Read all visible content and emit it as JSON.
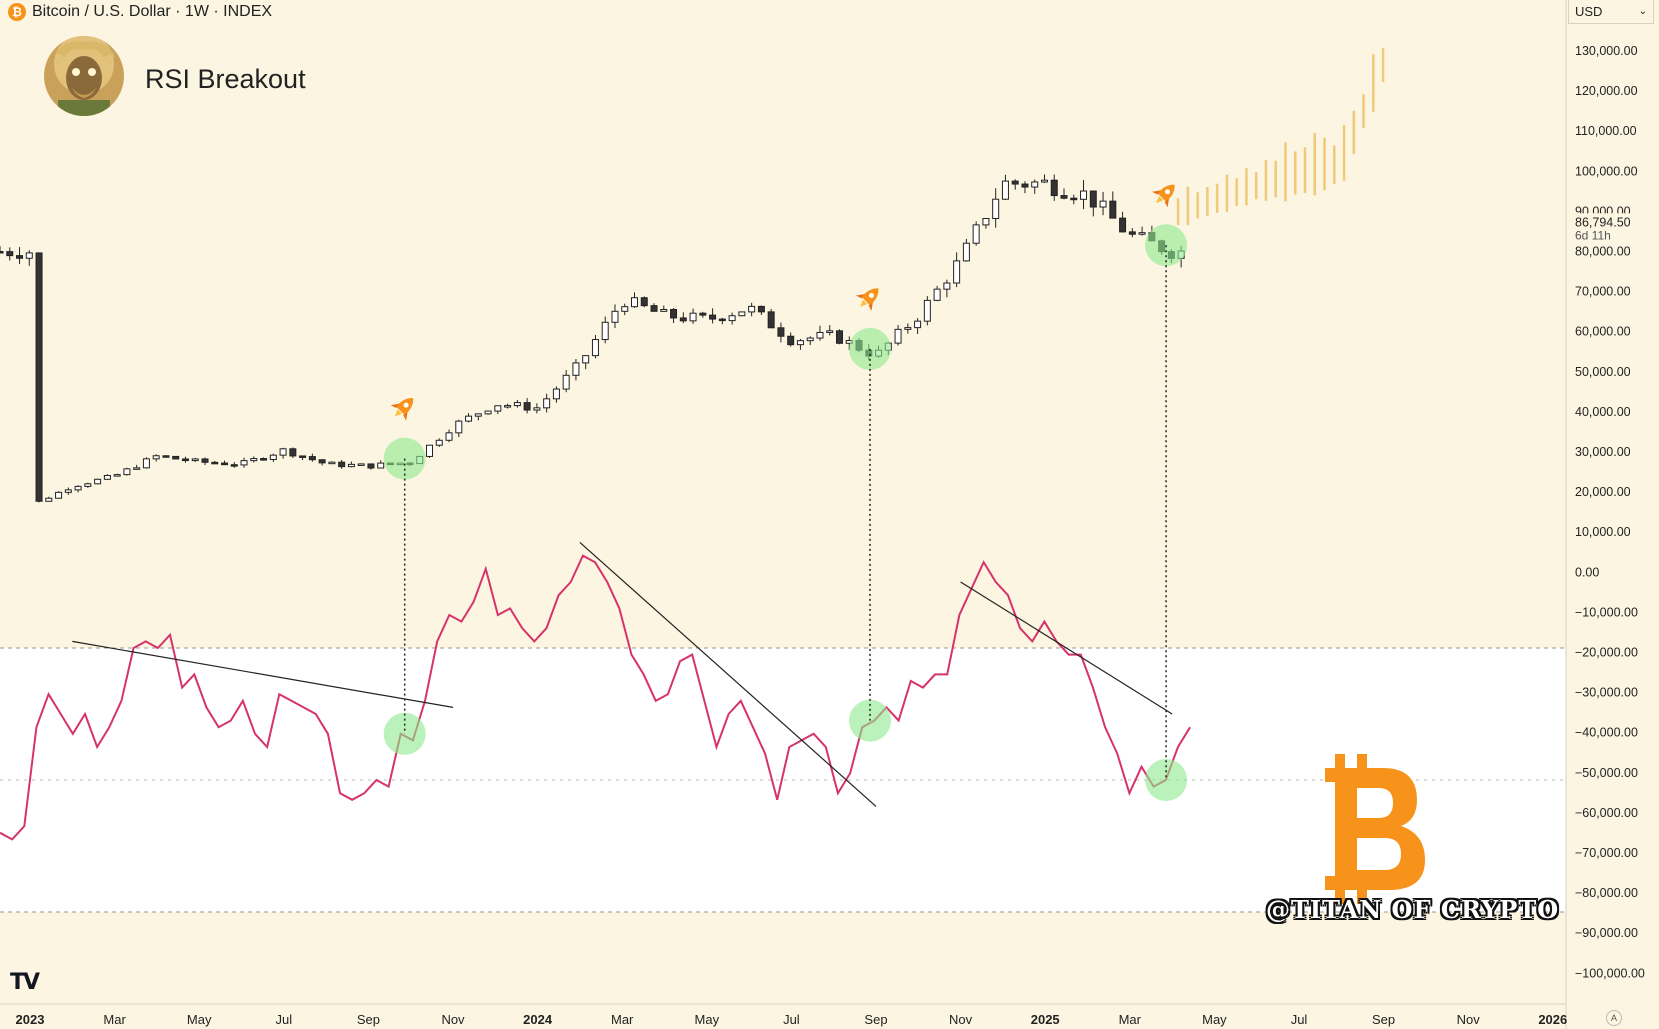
{
  "header": {
    "symbol_icon": "bitcoin-icon",
    "title": "Bitcoin / U.S. Dollar · 1W · INDEX"
  },
  "currency_selector": {
    "value": "USD",
    "icon": "chevron-down-icon"
  },
  "idea": {
    "title": "RSI Breakout",
    "avatar": "author-avatar"
  },
  "watermark": "@TITAN OF CRYPTO",
  "logo": "TV",
  "price_label": {
    "price": "86,794.50",
    "countdown": "6d 11h"
  },
  "colors": {
    "background": "#fcf5e1",
    "rsi_band": "#ffffff",
    "rsi_line": "#d6336c",
    "candle_up_fill": "#ffffff",
    "candle_down_fill": "#333333",
    "projection": "#f1c97a",
    "highlight": "#8ee98e",
    "bitcoin_orange": "#f7931a"
  },
  "chart_data": {
    "type": "candlestick",
    "title": "Bitcoin / U.S. Dollar · 1W · INDEX",
    "annotation": "RSI Breakout",
    "y_axis": {
      "ticks": [
        "130,000.00",
        "120,000.00",
        "110,000.00",
        "100,000.00",
        "90,000.00",
        "80,000.00",
        "70,000.00",
        "60,000.00",
        "50,000.00",
        "40,000.00",
        "30,000.00",
        "20,000.00",
        "10,000.00",
        "0.00",
        "−10,000.00",
        "−20,000.00",
        "−30,000.00",
        "−40,000.00",
        "−50,000.00",
        "−60,000.00",
        "−70,000.00",
        "−80,000.00",
        "−90,000.00",
        "−100,000.00"
      ],
      "range": [
        -100000,
        130000
      ]
    },
    "x_axis": {
      "labels": [
        {
          "text": "2023",
          "bold": true,
          "date": "2023-01"
        },
        {
          "text": "Mar",
          "date": "2023-03"
        },
        {
          "text": "May",
          "date": "2023-05"
        },
        {
          "text": "Jul",
          "date": "2023-07"
        },
        {
          "text": "Sep",
          "date": "2023-09"
        },
        {
          "text": "Nov",
          "date": "2023-11"
        },
        {
          "text": "2024",
          "bold": true,
          "date": "2024-01"
        },
        {
          "text": "Mar",
          "date": "2024-03"
        },
        {
          "text": "May",
          "date": "2024-05"
        },
        {
          "text": "Jul",
          "date": "2024-07"
        },
        {
          "text": "Sep",
          "date": "2024-09"
        },
        {
          "text": "Nov",
          "date": "2024-11"
        },
        {
          "text": "2025",
          "bold": true,
          "date": "2025-01"
        },
        {
          "text": "Mar",
          "date": "2025-03"
        },
        {
          "text": "May",
          "date": "2025-05"
        },
        {
          "text": "Jul",
          "date": "2025-07"
        },
        {
          "text": "Sep",
          "date": "2025-09"
        },
        {
          "text": "Nov",
          "date": "2025-11"
        },
        {
          "text": "2026",
          "bold": true,
          "date": "2026-01"
        }
      ]
    },
    "price_anchors": [
      [
        "2023-01",
        16500
      ],
      [
        "2023-02",
        21500
      ],
      [
        "2023-03",
        24000
      ],
      [
        "2023-04",
        29000
      ],
      [
        "2023-05",
        27500
      ],
      [
        "2023-06",
        27000
      ],
      [
        "2023-07",
        30500
      ],
      [
        "2023-08",
        27000
      ],
      [
        "2023-09",
        26500
      ],
      [
        "2023-10",
        27500
      ],
      [
        "2023-11",
        36500
      ],
      [
        "2023-12",
        42000
      ],
      [
        "2024-01",
        41000
      ],
      [
        "2024-02",
        52000
      ],
      [
        "2024-03",
        68000
      ],
      [
        "2024-04",
        64000
      ],
      [
        "2024-05",
        63000
      ],
      [
        "2024-06",
        66000
      ],
      [
        "2024-07",
        58000
      ],
      [
        "2024-08",
        59000
      ],
      [
        "2024-09",
        54000
      ],
      [
        "2024-10",
        64000
      ],
      [
        "2024-11",
        78000
      ],
      [
        "2024-12",
        97000
      ],
      [
        "2025-01",
        97000
      ],
      [
        "2025-02",
        94000
      ],
      [
        "2025-03",
        84000
      ],
      [
        "2025-04",
        80000
      ]
    ],
    "last_price": 86794.5,
    "projection_anchors": [
      [
        "2025-04",
        88000
      ],
      [
        "2025-06",
        95000
      ],
      [
        "2025-08",
        100000
      ],
      [
        "2025-09",
        125000
      ]
    ],
    "rsi": {
      "values": [
        42,
        41,
        43,
        58,
        63,
        60,
        57,
        60,
        55,
        58,
        62,
        70,
        71,
        70,
        72,
        64,
        66,
        61,
        58,
        59,
        62,
        57,
        55,
        63,
        62,
        61,
        60,
        57,
        48,
        47,
        48,
        50,
        49,
        57,
        56,
        62,
        71,
        75,
        74,
        77,
        82,
        75,
        76,
        73,
        71,
        73,
        78,
        80,
        84,
        83,
        80,
        76,
        69,
        66,
        62,
        63,
        68,
        69,
        62,
        55,
        60,
        62,
        58,
        54,
        47,
        55,
        56,
        57,
        55,
        48,
        51,
        58,
        59,
        61,
        59,
        65,
        64,
        66,
        66,
        75,
        79,
        83,
        80,
        78,
        73,
        71,
        74,
        71,
        69,
        69,
        64,
        58,
        54,
        48,
        52,
        49,
        50,
        55,
        58
      ],
      "band": [
        30,
        70
      ],
      "midline": 50
    },
    "breakouts": [
      {
        "date": "2023-10"
      },
      {
        "date": "2024-09"
      },
      {
        "date": "2025-04"
      }
    ],
    "trendlines": [
      {
        "from": [
          "2023-02",
          71
        ],
        "to": [
          "2023-11",
          61
        ]
      },
      {
        "from": [
          "2024-02",
          86
        ],
        "to": [
          "2024-09",
          46
        ]
      },
      {
        "from": [
          "2024-11",
          80
        ],
        "to": [
          "2025-04",
          60
        ]
      }
    ]
  }
}
